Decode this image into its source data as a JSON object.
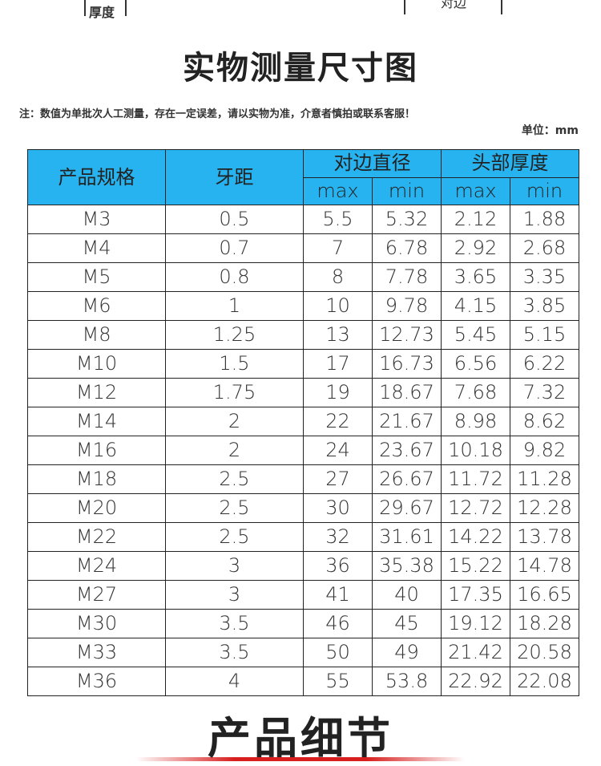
{
  "top_fragment": {
    "left": "厚度",
    "right": "对边"
  },
  "title": "实物测量尺寸图",
  "note": "注：数值为单批次人工测量，存在一定误差，请以实物为准，介意者慎拍或联系客服！",
  "unit": "单位：mm",
  "table": {
    "headers": {
      "spec": "产品规格",
      "pitch": "牙距",
      "across_flats": "对边直径",
      "head_thickness": "头部厚度",
      "sub": [
        "max",
        "min",
        "max",
        "min"
      ]
    },
    "rows": [
      [
        "M3",
        "0.5",
        "5.5",
        "5.32",
        "2.12",
        "1.88"
      ],
      [
        "M4",
        "0.7",
        "7",
        "6.78",
        "2.92",
        "2.68"
      ],
      [
        "M5",
        "0.8",
        "8",
        "7.78",
        "3.65",
        "3.35"
      ],
      [
        "M6",
        "1",
        "10",
        "9.78",
        "4.15",
        "3.85"
      ],
      [
        "M8",
        "1.25",
        "13",
        "12.73",
        "5.45",
        "5.15"
      ],
      [
        "M10",
        "1.5",
        "17",
        "16.73",
        "6.56",
        "6.22"
      ],
      [
        "M12",
        "1.75",
        "19",
        "18.67",
        "7.68",
        "7.32"
      ],
      [
        "M14",
        "2",
        "22",
        "21.67",
        "8.98",
        "8.62"
      ],
      [
        "M16",
        "2",
        "24",
        "23.67",
        "10.18",
        "9.82"
      ],
      [
        "M18",
        "2.5",
        "27",
        "26.67",
        "11.72",
        "11.28"
      ],
      [
        "M20",
        "2.5",
        "30",
        "29.67",
        "12.72",
        "12.28"
      ],
      [
        "M22",
        "2.5",
        "32",
        "31.61",
        "14.22",
        "13.78"
      ],
      [
        "M24",
        "3",
        "36",
        "35.38",
        "15.22",
        "14.78"
      ],
      [
        "M27",
        "3",
        "41",
        "40",
        "17.35",
        "16.65"
      ],
      [
        "M30",
        "3.5",
        "46",
        "45",
        "19.12",
        "18.28"
      ],
      [
        "M33",
        "3.5",
        "50",
        "49",
        "21.42",
        "20.58"
      ],
      [
        "M36",
        "4",
        "55",
        "53.8",
        "22.92",
        "22.08"
      ]
    ]
  },
  "footer_title": "产品细节"
}
